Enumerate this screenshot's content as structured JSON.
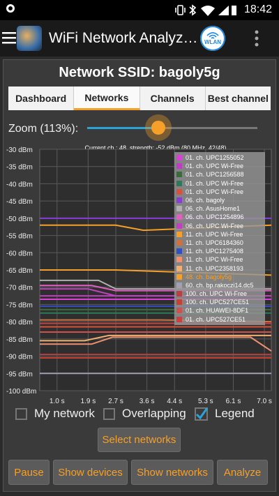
{
  "status_bar": {
    "time": "18:42"
  },
  "app_bar": {
    "title": "WiFi Network Analyz…",
    "wlan_label": "WLAN"
  },
  "ssid_title": "Network SSID: bagoly5g",
  "tabs": [
    {
      "label": "Dashboard",
      "active": false
    },
    {
      "label": "Networks",
      "active": true
    },
    {
      "label": "Channels",
      "active": false
    },
    {
      "label": "Best channel",
      "active": false
    }
  ],
  "zoom": {
    "label": "Zoom (113%):",
    "slider_level": 0.42
  },
  "chart_info": "Current ch.: 48, strength: -52 dBm (80 MHz, 42/48)",
  "chart_data": {
    "type": "line",
    "title": "",
    "xlabel": "",
    "ylabel": "",
    "x_ticks": [
      "1.0 s",
      "1.9 s",
      "2.7 s",
      "3.6 s",
      "4.4 s",
      "5.3 s",
      "6.1 s",
      "7.0 s"
    ],
    "y_ticks": [
      "-30 dBm",
      "-35 dBm",
      "-40 dBm",
      "-45 dBm",
      "-50 dBm",
      "-55 dBm",
      "-60 dBm",
      "-65 dBm",
      "-70 dBm",
      "-75 dBm",
      "-80 dBm",
      "-85 dBm",
      "-90 dBm",
      "-95 dBm",
      "-100 dBm"
    ],
    "xlim": [
      0.5,
      7.2
    ],
    "ylim": [
      -100,
      -30
    ],
    "grid": true,
    "legend_position": "top-right",
    "series": [
      {
        "name": "01. ch. UPC1255052",
        "color": "#d940d9",
        "x": [
          0.5,
          7.2
        ],
        "y": [
          -73.5,
          -73.5
        ]
      },
      {
        "name": "01. ch. UPC Wi-Free",
        "color": "#c03cc0",
        "x": [
          0.5,
          7.2
        ],
        "y": [
          -72.5,
          -72.5
        ]
      },
      {
        "name": "01. ch. UPC1256588",
        "color": "#3b6b3b",
        "x": [
          0.5,
          7.2
        ],
        "y": [
          -76.5,
          -76.5
        ]
      },
      {
        "name": "01. ch. UPC Wi-Free",
        "color": "#2d7a5a",
        "x": [
          0.5,
          7.2
        ],
        "y": [
          -77.5,
          -77.5
        ]
      },
      {
        "name": "01. ch. UPC Wi-Free",
        "color": "#d9503c",
        "x": [
          0.5,
          7.2
        ],
        "y": [
          -81.5,
          -81.5
        ]
      },
      {
        "name": "06. ch. bagoly",
        "color": "#8a3cd9",
        "x": [
          0.5,
          7.2
        ],
        "y": [
          -50,
          -50
        ]
      },
      {
        "name": "06. ch. AsusHome1",
        "color": "#b0b0b0",
        "x": [
          0.5,
          2.2,
          2.7,
          7.2
        ],
        "y": [
          -68,
          -68,
          -70.5,
          -70.5
        ]
      },
      {
        "name": "06. ch. UPC1254896",
        "color": "#e060c0",
        "x": [
          0.5,
          2.0,
          2.7,
          7.2
        ],
        "y": [
          -69.5,
          -69.5,
          -71,
          -71
        ]
      },
      {
        "name": "06. ch. UPC Wi-Free",
        "color": "#c040c0",
        "x": [
          0.5,
          1.9,
          2.7,
          7.2
        ],
        "y": [
          -70.5,
          -70.5,
          -72.5,
          -72.5
        ]
      },
      {
        "name": "11. ch. UPC Wi-Free",
        "color": "#f6a029",
        "x": [
          0.5,
          2.7,
          7.2
        ],
        "y": [
          -65,
          -65,
          -66.5
        ]
      },
      {
        "name": "11. ch. UPC6184360",
        "color": "#d07040",
        "x": [
          0.5,
          4.0,
          7.2
        ],
        "y": [
          -79.5,
          -79.5,
          -80
        ]
      },
      {
        "name": "11. ch. UPC1275408",
        "color": "#3050c0",
        "x": [
          0.5,
          7.2
        ],
        "y": [
          -75.5,
          -75.5
        ]
      },
      {
        "name": "11. ch. UPC Wi-Free",
        "color": "#ef9070",
        "x": [
          0.5,
          2.0,
          2.6,
          6.6,
          7.2
        ],
        "y": [
          -86.5,
          -86.5,
          -84.5,
          -84.5,
          -88.5
        ]
      },
      {
        "name": "11. ch. UPC2358193",
        "color": "#f0b070",
        "x": [
          0.5,
          1.8,
          2.5,
          3.0,
          7.2
        ],
        "y": [
          -85.5,
          -85.5,
          -84,
          -84,
          -84
        ]
      },
      {
        "name": "48. ch. bagoly5g",
        "color": "#f6a029",
        "x": [
          0.5,
          2.7,
          3.5,
          7.2
        ],
        "y": [
          -52,
          -52,
          -53.5,
          -52
        ]
      },
      {
        "name": "60. ch. bp.rakoczi14.dc5",
        "color": "#a0a0b0",
        "x": [
          0.5,
          7.2
        ],
        "y": [
          -95,
          -95
        ]
      },
      {
        "name": "100. ch. UPC Wi-Free",
        "color": "#b84040",
        "x": [
          0.5,
          7.2
        ],
        "y": [
          -89.5,
          -89.5
        ]
      },
      {
        "name": "100. ch. UPC527CE51",
        "color": "#c84030",
        "x": [
          0.5,
          7.2
        ],
        "y": [
          -90.5,
          -90.5
        ]
      },
      {
        "name": "01. ch. HUAWEI-8DF1",
        "color": "#d05050",
        "x": [
          0.5,
          7.2
        ],
        "y": [
          -83,
          -83
        ]
      },
      {
        "name": "01. ch. UPC527CE51",
        "color": "#c84040",
        "x": [
          0.5,
          7.2
        ],
        "y": [
          -80.5,
          -80.5
        ]
      }
    ]
  },
  "checkboxes": [
    {
      "label": "My network",
      "checked": false
    },
    {
      "label": "Overlapping",
      "checked": false
    },
    {
      "label": "Legend",
      "checked": true
    }
  ],
  "select_networks_label": "Select networks",
  "bottom_buttons": [
    "Pause",
    "Show devices",
    "Show networks",
    "Analyze"
  ],
  "colors": {
    "accent": "#f6a029",
    "slider": "#29a3d9",
    "wlan_icon": "#1e88e5"
  }
}
